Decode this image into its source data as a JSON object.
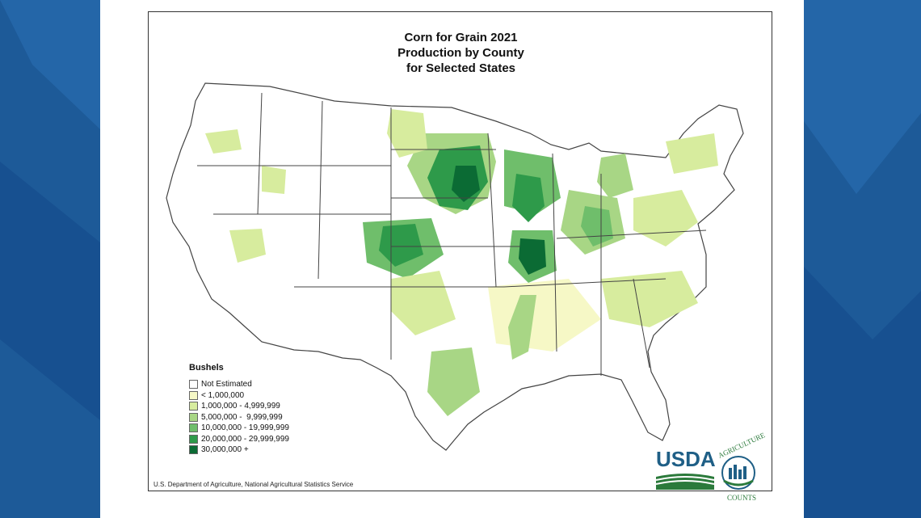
{
  "colors": {
    "background_blue": "#1d5a98",
    "not_estimated": "#ffffff",
    "lt_1m": "#f6f8c6",
    "c1_5m": "#d7ec9e",
    "c5_10m": "#a8d685",
    "c10_20m": "#6fbe6b",
    "c20_30m": "#2e9a4a",
    "c30m_plus": "#0b6b34",
    "state_border": "#444444",
    "usda_blue": "#1f5f86",
    "usda_green": "#2b7a3b"
  },
  "title": {
    "line1": "Corn for Grain 2021",
    "line2": "Production by County",
    "line3": "for Selected States"
  },
  "legend": {
    "title": "Bushels",
    "items": [
      {
        "label": "Not Estimated",
        "color": "#ffffff"
      },
      {
        "label": "< 1,000,000",
        "color": "#f6f8c6"
      },
      {
        "label": "1,000,000 - 4,999,999",
        "color": "#d7ec9e"
      },
      {
        "label": "5,000,000 -  9,999,999",
        "color": "#a8d685"
      },
      {
        "label": "10,000,000 - 19,999,999",
        "color": "#6fbe6b"
      },
      {
        "label": "20,000,000 - 29,999,999",
        "color": "#2e9a4a"
      },
      {
        "label": "30,000,000 +",
        "color": "#0b6b34"
      }
    ]
  },
  "credit": "U.S. Department of Agriculture, National Agricultural Statistics Service",
  "logo": {
    "usda": "USDA",
    "seal_top": "AGRICULTURE",
    "seal_bottom": "COUNTS"
  }
}
